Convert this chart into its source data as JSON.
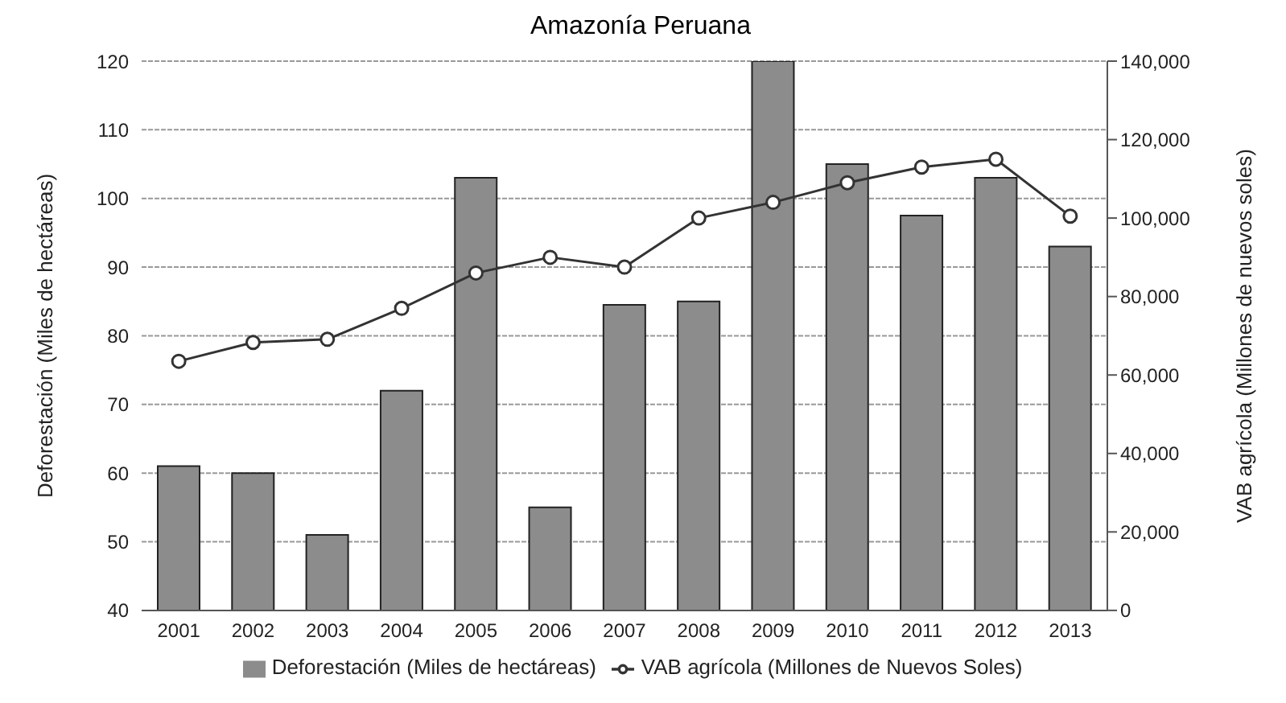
{
  "chart_data": {
    "type": "bar",
    "title": "Amazonía Peruana",
    "ylabel": "Deforestación (Miles de hectáreas)",
    "y2label": "VAB agrícola (Millones de nuevos soles)",
    "categories": [
      "2001",
      "2002",
      "2003",
      "2004",
      "2005",
      "2006",
      "2007",
      "2008",
      "2009",
      "2010",
      "2011",
      "2012",
      "2013"
    ],
    "series": [
      {
        "name": "Deforestación (Miles de hectáreas)",
        "color": "#8c8c8c",
        "values": [
          61,
          60,
          51,
          72,
          103,
          55,
          84.5,
          85,
          120,
          105,
          97.5,
          103,
          93
        ]
      },
      {
        "name": "VAB agrícola (Millones de Nuevos Soles)",
        "type": "line",
        "axis": "y2",
        "color": "#333333",
        "marker": "circle",
        "values": [
          63500,
          68300,
          69100,
          77000,
          86000,
          90000,
          87500,
          100000,
          104000,
          109000,
          113000,
          115000,
          100500
        ]
      }
    ],
    "ylim": [
      40,
      120
    ],
    "yticks": [
      40,
      50,
      60,
      70,
      80,
      90,
      100,
      110,
      120
    ],
    "y2lim": [
      0,
      140000
    ],
    "y2ticks": [
      {
        "value": 0,
        "label": "0"
      },
      {
        "value": 20000,
        "label": "20,000"
      },
      {
        "value": 40000,
        "label": "40,000"
      },
      {
        "value": 60000,
        "label": "60,000"
      },
      {
        "value": 80000,
        "label": "80,000"
      },
      {
        "value": 100000,
        "label": "100,000"
      },
      {
        "value": 120000,
        "label": "120,000"
      },
      {
        "value": 140000,
        "label": "140,000"
      }
    ],
    "grid": "y",
    "legend": "bottom"
  }
}
